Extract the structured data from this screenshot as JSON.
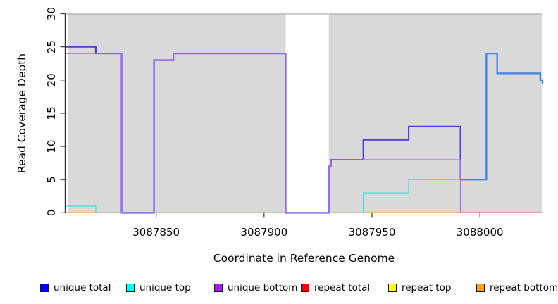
{
  "figure": {
    "xlabel": "Coordinate in Reference Genome",
    "ylabel": "Read Coverage Depth"
  },
  "legend": {
    "items": [
      {
        "label": "unique total",
        "color": "#0000FF"
      },
      {
        "label": "unique top",
        "color": "#00FFFF"
      },
      {
        "label": "unique bottom",
        "color": "#A020F0"
      },
      {
        "label": "repeat total",
        "color": "#FF0000"
      },
      {
        "label": "repeat top",
        "color": "#FFFF00"
      },
      {
        "label": "repeat bottom",
        "color": "#FFA500"
      }
    ]
  },
  "chart_data": {
    "type": "line",
    "subtype": "step-coverage",
    "title": "",
    "xlabel": "Coordinate in Reference Genome",
    "ylabel": "Read Coverage Depth",
    "xlim": [
      3087808,
      3088029
    ],
    "ylim": [
      0,
      30
    ],
    "x_ticks": [
      3087850,
      3087900,
      3087950,
      3088000
    ],
    "y_ticks": [
      0,
      5,
      10,
      15,
      20,
      25,
      30
    ],
    "grid": false,
    "legend_position": "bottom",
    "panel_color": "#D9D9D9",
    "shaded_regions": [
      {
        "from": 3087809,
        "to": 3087910
      },
      {
        "from": 3087930,
        "to": 3088029
      }
    ],
    "gap_region": {
      "from": 3087910,
      "to": 3087930
    },
    "series": [
      {
        "name": "unique total",
        "steps": [
          [
            3087808,
            25
          ],
          [
            3087822,
            24
          ],
          [
            3087834,
            0
          ],
          [
            3087849,
            23
          ],
          [
            3087858,
            24
          ],
          [
            3087910,
            0
          ],
          [
            3087930,
            7
          ],
          [
            3087931,
            8
          ],
          [
            3087946,
            11
          ],
          [
            3087967,
            13
          ],
          [
            3087991,
            5
          ],
          [
            3088003,
            24
          ],
          [
            3088008,
            21
          ],
          [
            3088028,
            20
          ],
          [
            3088029,
            19
          ]
        ]
      },
      {
        "name": "unique top",
        "steps": [
          [
            3087808,
            1
          ],
          [
            3087822,
            0
          ],
          [
            3087946,
            3
          ],
          [
            3087967,
            5
          ],
          [
            3087991,
            0
          ],
          [
            3088029,
            0
          ]
        ]
      },
      {
        "name": "unique bottom",
        "steps": [
          [
            3087808,
            24
          ],
          [
            3087834,
            0
          ],
          [
            3087849,
            23
          ],
          [
            3087858,
            24
          ],
          [
            3087910,
            0
          ],
          [
            3087930,
            7
          ],
          [
            3087931,
            8
          ],
          [
            3087991,
            0
          ],
          [
            3088029,
            0
          ]
        ]
      },
      {
        "name": "repeat total",
        "steps": [
          [
            3087808,
            0
          ],
          [
            3088029,
            0
          ]
        ]
      },
      {
        "name": "repeat top",
        "steps": [
          [
            3087808,
            0
          ],
          [
            3088029,
            0
          ]
        ]
      },
      {
        "name": "repeat bottom",
        "steps": [
          [
            3087808,
            0
          ],
          [
            3088029,
            0
          ]
        ]
      }
    ],
    "render": {
      "top_edge_color": "#ABABAB",
      "axis_color": "#333333",
      "paths": [
        {
          "name": "unique-top",
          "color": "#35DDE2",
          "width": 1.3,
          "steps": [
            [
              3087808,
              1
            ],
            [
              3087822,
              0
            ],
            [
              3087946,
              3
            ],
            [
              3087967,
              5
            ],
            [
              3087991,
              0
            ],
            [
              3088029,
              0
            ]
          ]
        },
        {
          "name": "unique-total-left",
          "color": "#4A3BE0",
          "width": 2.1,
          "steps": [
            [
              3087808,
              25
            ],
            [
              3087822,
              24
            ],
            [
              3087834,
              0
            ],
            [
              3087849,
              23
            ],
            [
              3087858,
              24
            ],
            [
              3087910,
              0
            ],
            [
              3087930,
              7
            ],
            [
              3087931,
              8
            ],
            [
              3087946,
              11
            ],
            [
              3087967,
              13
            ],
            [
              3087991,
              5
            ]
          ]
        },
        {
          "name": "unique-bottom",
          "color": "#AA6BE8",
          "width": 1.3,
          "steps": [
            [
              3087808,
              24
            ],
            [
              3087834,
              0
            ],
            [
              3087849,
              23
            ],
            [
              3087858,
              24
            ],
            [
              3087910,
              0
            ],
            [
              3087930,
              7
            ],
            [
              3087931,
              8
            ],
            [
              3087991,
              0
            ],
            [
              3088029,
              0
            ]
          ]
        },
        {
          "name": "unique-total-right",
          "color": "#4080E8",
          "width": 2.3,
          "steps": [
            [
              3087991,
              5
            ],
            [
              3088003,
              24
            ],
            [
              3088008,
              21
            ],
            [
              3088028,
              20
            ],
            [
              3088029,
              19.4
            ]
          ]
        }
      ],
      "baseline_segments": [
        {
          "from": 3087808,
          "to": 3087822,
          "color": "#FF9914"
        },
        {
          "from": 3087822,
          "to": 3087834,
          "color": "#8FC97F"
        },
        {
          "from": 3087849,
          "to": 3087910,
          "color": "#8FC97F"
        },
        {
          "from": 3087930,
          "to": 3087946,
          "color": "#8FC97F"
        },
        {
          "from": 3087946,
          "to": 3087991,
          "color": "#FF9914"
        },
        {
          "from": 3087991,
          "to": 3088029,
          "color": "#E0558C"
        }
      ]
    }
  },
  "layout_hints": {
    "legend_lefts": [
      57,
      179,
      304,
      427,
      551,
      676
    ]
  }
}
